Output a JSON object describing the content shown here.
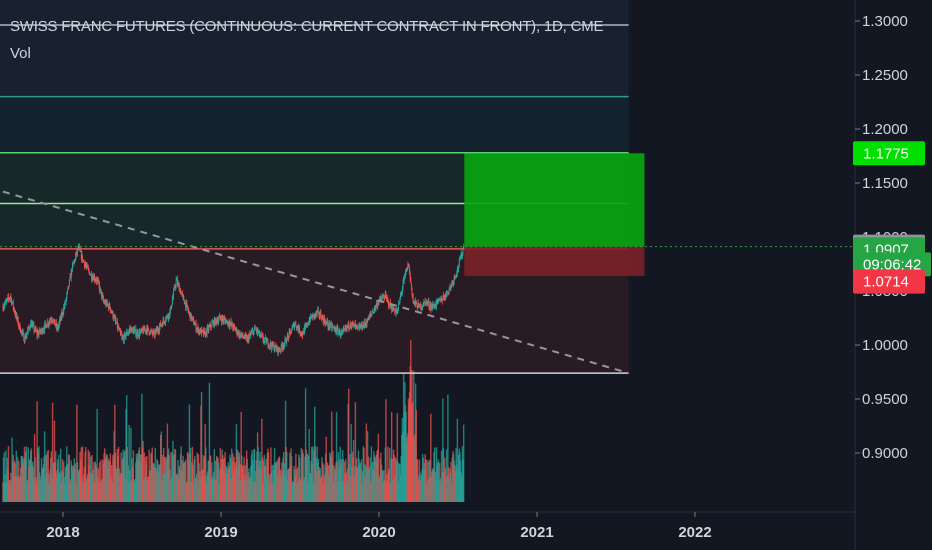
{
  "header": {
    "title": "SWISS FRANC FUTURES (CONTINUOUS: CURRENT CONTRACT IN FRONT), 1D, CME",
    "volume_label": "Vol"
  },
  "chart_data": {
    "type": "candlestick",
    "instrument": "SWISS FRANC FUTURES (CONTINUOUS: CURRENT CONTRACT IN FRONT)",
    "interval": "1D",
    "exchange": "CME",
    "y_axis": {
      "ticks": [
        "1.3000",
        "1.2500",
        "1.2000",
        "1.1500",
        "1.1000",
        "1.0500",
        "1.0000",
        "0.9500",
        "0.9000"
      ],
      "range": [
        0.86,
        1.31
      ]
    },
    "x_axis": {
      "ticks": [
        "2018",
        "2019",
        "2020",
        "2021",
        "2022"
      ],
      "tick_values": [
        2018.0,
        2019.0,
        2020.0,
        2021.0,
        2022.0
      ],
      "range": [
        2017.62,
        2022.93
      ]
    },
    "price_series": [
      [
        2017.62,
        1.035
      ],
      [
        2017.67,
        1.045
      ],
      [
        2017.72,
        1.02
      ],
      [
        2017.76,
        1.005
      ],
      [
        2017.8,
        1.02
      ],
      [
        2017.84,
        1.01
      ],
      [
        2017.88,
        1.015
      ],
      [
        2017.93,
        1.025
      ],
      [
        2017.97,
        1.015
      ],
      [
        2018.02,
        1.04
      ],
      [
        2018.06,
        1.07
      ],
      [
        2018.1,
        1.09
      ],
      [
        2018.14,
        1.075
      ],
      [
        2018.18,
        1.065
      ],
      [
        2018.22,
        1.06
      ],
      [
        2018.26,
        1.04
      ],
      [
        2018.3,
        1.035
      ],
      [
        2018.34,
        1.02
      ],
      [
        2018.38,
        1.005
      ],
      [
        2018.43,
        1.015
      ],
      [
        2018.48,
        1.01
      ],
      [
        2018.53,
        1.015
      ],
      [
        2018.58,
        1.01
      ],
      [
        2018.63,
        1.02
      ],
      [
        2018.68,
        1.03
      ],
      [
        2018.72,
        1.06
      ],
      [
        2018.76,
        1.045
      ],
      [
        2018.8,
        1.03
      ],
      [
        2018.85,
        1.015
      ],
      [
        2018.9,
        1.01
      ],
      [
        2018.95,
        1.02
      ],
      [
        2019.0,
        1.025
      ],
      [
        2019.06,
        1.02
      ],
      [
        2019.12,
        1.01
      ],
      [
        2019.17,
        1.005
      ],
      [
        2019.22,
        1.015
      ],
      [
        2019.27,
        1.005
      ],
      [
        2019.32,
        1.0
      ],
      [
        2019.37,
        0.995
      ],
      [
        2019.42,
        1.005
      ],
      [
        2019.47,
        1.02
      ],
      [
        2019.52,
        1.01
      ],
      [
        2019.57,
        1.025
      ],
      [
        2019.62,
        1.03
      ],
      [
        2019.67,
        1.02
      ],
      [
        2019.72,
        1.015
      ],
      [
        2019.77,
        1.01
      ],
      [
        2019.82,
        1.02
      ],
      [
        2019.87,
        1.015
      ],
      [
        2019.92,
        1.02
      ],
      [
        2019.96,
        1.03
      ],
      [
        2020.0,
        1.04
      ],
      [
        2020.04,
        1.045
      ],
      [
        2020.08,
        1.035
      ],
      [
        2020.12,
        1.03
      ],
      [
        2020.16,
        1.06
      ],
      [
        2020.19,
        1.075
      ],
      [
        2020.22,
        1.04
      ],
      [
        2020.26,
        1.035
      ],
      [
        2020.3,
        1.04
      ],
      [
        2020.34,
        1.035
      ],
      [
        2020.38,
        1.04
      ],
      [
        2020.42,
        1.045
      ],
      [
        2020.46,
        1.055
      ],
      [
        2020.5,
        1.07
      ],
      [
        2020.54,
        1.0907
      ]
    ],
    "drawing_tool": {
      "type": "long-position",
      "target": 1.1775,
      "entry": 1.0911,
      "stop": 1.0714,
      "x_range": [
        2020.54,
        2021.68
      ]
    },
    "horizontal_levels": [
      1.23,
      1.178,
      1.131,
      1.089,
      0.974
    ],
    "trendline": [
      [
        2017.62,
        1.142
      ],
      [
        2021.58,
        0.974
      ]
    ],
    "price_badges": [
      {
        "label": "1.1775",
        "price": 1.1775,
        "bg": "#00e000",
        "fg": "#000000"
      },
      {
        "label": "1.0911",
        "price": 1.0911,
        "bg": "#8f939a",
        "fg": "#ffffff"
      },
      {
        "label": "1.0907",
        "price": 1.0885,
        "bg": "#26a544",
        "fg": "#ffffff"
      },
      {
        "label": "09:06:42",
        "price": 1.0747,
        "bg": "#26a544",
        "fg": "#ffffff"
      },
      {
        "label": "1.0714",
        "price": 1.0587,
        "bg": "#f23645",
        "fg": "#ffffff"
      }
    ],
    "colors": {
      "background": "#131722",
      "up": "#26a69a",
      "down": "#ef5350",
      "target_zone": "#08a50f",
      "stop_zone": "#7a2228",
      "levels": "#2a9d8f"
    }
  }
}
